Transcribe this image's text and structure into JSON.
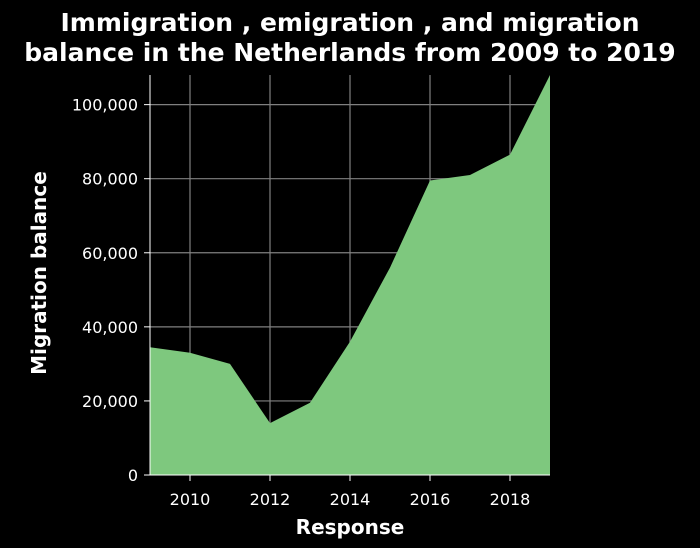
{
  "chart_data": {
    "type": "area",
    "title_lines": [
      "Immigration , emigration , and migration",
      "balance in the Netherlands from 2009 to 2019"
    ],
    "xlabel": "Response",
    "ylabel": "Migration balance",
    "x": [
      2009,
      2010,
      2011,
      2012,
      2013,
      2014,
      2015,
      2016,
      2017,
      2018,
      2019
    ],
    "values": [
      34500,
      33000,
      30000,
      14000,
      19500,
      36000,
      56000,
      79500,
      81000,
      86500,
      108000
    ],
    "xlim": [
      2009,
      2019
    ],
    "ylim": [
      0,
      108000
    ],
    "x_ticks": [
      2010,
      2012,
      2014,
      2016,
      2018
    ],
    "x_tick_labels": [
      "2010",
      "2012",
      "2014",
      "2016",
      "2018"
    ],
    "y_ticks": [
      0,
      20000,
      40000,
      60000,
      80000,
      100000
    ],
    "y_tick_labels": [
      "0",
      "20,000",
      "40,000",
      "60,000",
      "80,000",
      "100,000"
    ],
    "grid": true,
    "fill_color": "#7ec87e",
    "grid_color": "#808080",
    "background_color": "#000000",
    "text_color": "#ffffff"
  }
}
